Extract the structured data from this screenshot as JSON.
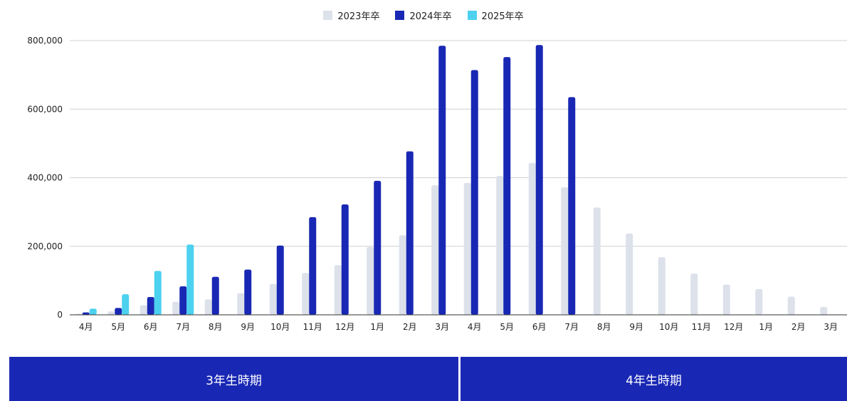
{
  "chart_data": {
    "type": "bar",
    "categories": [
      "4月",
      "5月",
      "6月",
      "7月",
      "8月",
      "9月",
      "10月",
      "11月",
      "12月",
      "1月",
      "2月",
      "3月",
      "4月",
      "5月",
      "6月",
      "7月",
      "8月",
      "9月",
      "10月",
      "11月",
      "12月",
      "1月",
      "2月",
      "3月"
    ],
    "series": [
      {
        "name": "2023年卒",
        "color": "#dce1ea",
        "values": [
          3000,
          10000,
          28000,
          38000,
          45000,
          63000,
          90000,
          122000,
          145000,
          198000,
          232000,
          378000,
          385000,
          405000,
          443000,
          372000,
          313000,
          237000,
          168000,
          120000,
          88000,
          75000,
          53000,
          23000
        ]
      },
      {
        "name": "2024年卒",
        "color": "#1928b4",
        "values": [
          7000,
          20000,
          52000,
          83000,
          111000,
          132000,
          202000,
          285000,
          322000,
          391000,
          477000,
          785000,
          714000,
          752000,
          787000,
          635000,
          null,
          null,
          null,
          null,
          null,
          null,
          null,
          null
        ]
      },
      {
        "name": "2025年卒",
        "color": "#4cd1ef",
        "values": [
          18000,
          60000,
          128000,
          205000,
          null,
          null,
          null,
          null,
          null,
          null,
          null,
          null,
          null,
          null,
          null,
          null,
          null,
          null,
          null,
          null,
          null,
          null,
          null,
          null
        ]
      }
    ],
    "yticks": [
      0,
      200000,
      400000,
      600000,
      800000
    ],
    "ytick_labels": [
      "0",
      "200,000",
      "400,000",
      "600,000",
      "800,000"
    ],
    "ylim": [
      0,
      800000
    ],
    "grid": true,
    "legend_position": "top-center"
  },
  "periods": {
    "third_year": "3年生時期",
    "fourth_year": "4年生時期"
  }
}
